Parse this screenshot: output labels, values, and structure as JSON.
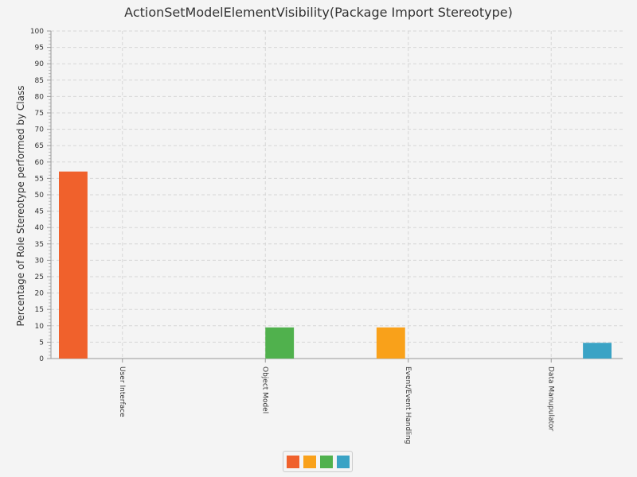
{
  "chart_data": {
    "type": "bar",
    "title": "ActionSetModelElementVisibility(Package Import Stereotype)",
    "xlabel": "",
    "ylabel": "Percentage of Role Stereotype performed by Class",
    "ylim": [
      0,
      100
    ],
    "ytick_step": 5,
    "grid": true,
    "legend_position": "bottom-center",
    "categories": [
      "User Interface",
      "Object Model",
      "Event/Event Handling",
      "Data Manupulator"
    ],
    "series": [
      {
        "color": "#f0612c",
        "values": [
          57.1,
          0,
          0,
          0
        ]
      },
      {
        "color": "#f9a11a",
        "values": [
          0,
          0,
          9.5,
          0
        ]
      },
      {
        "color": "#50b14d",
        "values": [
          0,
          9.5,
          0,
          0
        ]
      },
      {
        "color": "#3aa3c5",
        "values": [
          0,
          0,
          0,
          4.8
        ]
      }
    ]
  }
}
